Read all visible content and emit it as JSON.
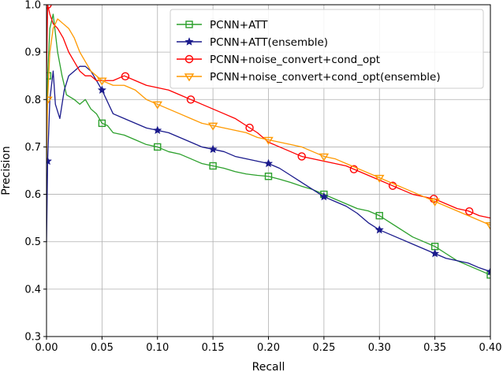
{
  "chart_data": {
    "type": "line",
    "title": "",
    "xlabel": "Recall",
    "ylabel": "Precision",
    "xlim": [
      0.0,
      0.4
    ],
    "ylim": [
      0.3,
      1.0
    ],
    "xticks": [
      "0.00",
      "0.05",
      "0.10",
      "0.15",
      "0.20",
      "0.25",
      "0.30",
      "0.35",
      "0.40"
    ],
    "yticks": [
      "0.3",
      "0.4",
      "0.5",
      "0.6",
      "0.7",
      "0.8",
      "0.9",
      "1.0"
    ],
    "grid": true,
    "legend_position": "top-right",
    "series": [
      {
        "name": "PCNN+ATT",
        "color": "#2ca02c",
        "marker": "square",
        "x": [
          0.0,
          0.001,
          0.003,
          0.006,
          0.01,
          0.014,
          0.018,
          0.025,
          0.03,
          0.035,
          0.04,
          0.045,
          0.05,
          0.055,
          0.06,
          0.07,
          0.08,
          0.09,
          0.1,
          0.11,
          0.12,
          0.13,
          0.14,
          0.15,
          0.16,
          0.17,
          0.18,
          0.19,
          0.2,
          0.21,
          0.22,
          0.23,
          0.24,
          0.25,
          0.26,
          0.27,
          0.28,
          0.29,
          0.3,
          0.31,
          0.32,
          0.33,
          0.34,
          0.35,
          0.36,
          0.37,
          0.38,
          0.39,
          0.4
        ],
        "y": [
          0.67,
          0.85,
          0.95,
          0.98,
          0.9,
          0.85,
          0.81,
          0.8,
          0.79,
          0.8,
          0.78,
          0.77,
          0.75,
          0.745,
          0.73,
          0.725,
          0.715,
          0.705,
          0.7,
          0.69,
          0.685,
          0.675,
          0.665,
          0.66,
          0.655,
          0.648,
          0.643,
          0.64,
          0.638,
          0.632,
          0.625,
          0.617,
          0.61,
          0.6,
          0.59,
          0.58,
          0.57,
          0.565,
          0.555,
          0.54,
          0.525,
          0.51,
          0.5,
          0.49,
          0.475,
          0.46,
          0.45,
          0.44,
          0.43
        ]
      },
      {
        "name": "PCNN+ATT(ensemble)",
        "color": "#1a1a8c",
        "marker": "star",
        "x": [
          0.0,
          0.001,
          0.003,
          0.006,
          0.008,
          0.012,
          0.016,
          0.02,
          0.025,
          0.03,
          0.035,
          0.04,
          0.045,
          0.05,
          0.06,
          0.07,
          0.08,
          0.09,
          0.1,
          0.11,
          0.12,
          0.13,
          0.14,
          0.15,
          0.16,
          0.17,
          0.18,
          0.19,
          0.2,
          0.21,
          0.22,
          0.23,
          0.24,
          0.25,
          0.26,
          0.27,
          0.28,
          0.29,
          0.3,
          0.31,
          0.32,
          0.33,
          0.34,
          0.35,
          0.36,
          0.37,
          0.38,
          0.39,
          0.4
        ],
        "y": [
          0.5,
          0.67,
          0.8,
          0.86,
          0.79,
          0.76,
          0.82,
          0.85,
          0.86,
          0.87,
          0.87,
          0.86,
          0.84,
          0.82,
          0.77,
          0.76,
          0.75,
          0.74,
          0.735,
          0.73,
          0.72,
          0.71,
          0.7,
          0.695,
          0.69,
          0.68,
          0.675,
          0.67,
          0.665,
          0.655,
          0.64,
          0.625,
          0.61,
          0.595,
          0.585,
          0.575,
          0.56,
          0.54,
          0.525,
          0.515,
          0.505,
          0.495,
          0.485,
          0.475,
          0.465,
          0.46,
          0.455,
          0.445,
          0.437
        ]
      },
      {
        "name": "PCNN+noise_convert+cond_opt",
        "color": "#ff0000",
        "marker": "circle",
        "x": [
          0.0,
          0.001,
          0.003,
          0.006,
          0.01,
          0.015,
          0.02,
          0.025,
          0.03,
          0.035,
          0.04,
          0.045,
          0.05,
          0.06,
          0.07,
          0.08,
          0.09,
          0.1,
          0.11,
          0.12,
          0.13,
          0.14,
          0.15,
          0.16,
          0.17,
          0.18,
          0.19,
          0.2,
          0.21,
          0.22,
          0.23,
          0.24,
          0.25,
          0.26,
          0.27,
          0.28,
          0.29,
          0.3,
          0.31,
          0.32,
          0.33,
          0.34,
          0.35,
          0.36,
          0.37,
          0.38,
          0.39,
          0.4
        ],
        "y": [
          0.85,
          1.0,
          0.98,
          0.96,
          0.95,
          0.93,
          0.9,
          0.88,
          0.86,
          0.85,
          0.85,
          0.84,
          0.84,
          0.84,
          0.85,
          0.84,
          0.83,
          0.825,
          0.82,
          0.81,
          0.8,
          0.79,
          0.78,
          0.77,
          0.76,
          0.745,
          0.73,
          0.71,
          0.7,
          0.69,
          0.68,
          0.675,
          0.67,
          0.665,
          0.66,
          0.65,
          0.64,
          0.63,
          0.62,
          0.61,
          0.6,
          0.595,
          0.59,
          0.58,
          0.57,
          0.565,
          0.555,
          0.55
        ],
        "marker_x": [
          0.001,
          0.071,
          0.13,
          0.183,
          0.23,
          0.277,
          0.312,
          0.349,
          0.381
        ]
      },
      {
        "name": "PCNN+noise_convert+cond_opt(ensemble)",
        "color": "#ff9900",
        "marker": "triangle-down",
        "x": [
          0.0,
          0.001,
          0.003,
          0.006,
          0.01,
          0.015,
          0.02,
          0.025,
          0.03,
          0.035,
          0.04,
          0.045,
          0.05,
          0.06,
          0.07,
          0.08,
          0.09,
          0.1,
          0.11,
          0.12,
          0.13,
          0.14,
          0.15,
          0.16,
          0.17,
          0.18,
          0.19,
          0.2,
          0.21,
          0.22,
          0.23,
          0.24,
          0.25,
          0.26,
          0.27,
          0.28,
          0.29,
          0.3,
          0.31,
          0.32,
          0.33,
          0.34,
          0.35,
          0.36,
          0.37,
          0.38,
          0.39,
          0.4
        ],
        "y": [
          0.67,
          0.8,
          0.9,
          0.95,
          0.97,
          0.96,
          0.95,
          0.93,
          0.9,
          0.88,
          0.86,
          0.85,
          0.84,
          0.83,
          0.83,
          0.82,
          0.8,
          0.79,
          0.78,
          0.77,
          0.76,
          0.75,
          0.745,
          0.74,
          0.735,
          0.73,
          0.72,
          0.715,
          0.71,
          0.705,
          0.7,
          0.69,
          0.68,
          0.675,
          0.665,
          0.655,
          0.645,
          0.635,
          0.625,
          0.615,
          0.605,
          0.595,
          0.585,
          0.575,
          0.565,
          0.555,
          0.545,
          0.535
        ]
      }
    ]
  }
}
